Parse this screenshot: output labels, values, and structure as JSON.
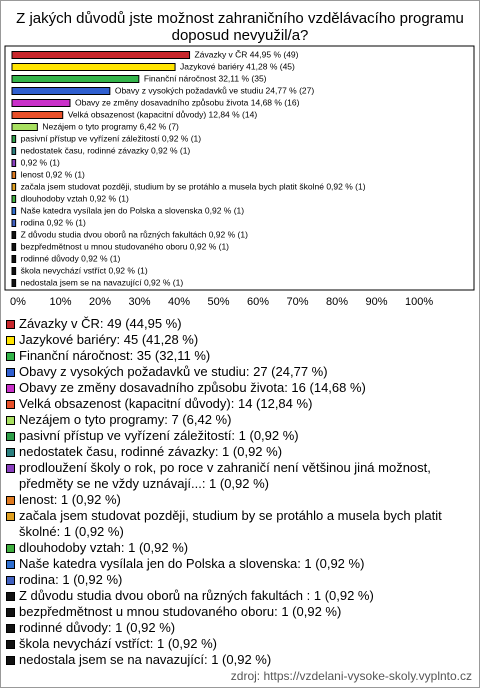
{
  "chart_data": {
    "type": "hbar",
    "title": [
      "Z jakých důvodů jste možnost zahraničního vzdělávacího programu",
      "doposud nevyužil/a?"
    ],
    "values": [
      44.95,
      41.28,
      32.11,
      24.77,
      14.68,
      12.84,
      6.42,
      0.92,
      0.92,
      0.92,
      0.92,
      0.92,
      0.92,
      0.92,
      0.92,
      0.92,
      0.92,
      0.92,
      0.92,
      0.92
    ],
    "value_labels": [
      "Závazky v ČR 44,95 % (49)",
      "Jazykové bariéry 41,28 % (45)",
      "Finanční náročnost 32,11 % (35)",
      "Obavy z vysokých požadavků ve studiu 24,77 % (27)",
      "Obavy ze změny dosavadního způsobu života 14,68 % (16)",
      "Velká obsazenost (kapacitní důvody) 12,84 % (14)",
      "Nezájem o tyto programy 6,42 % (7)",
      "pasivní přístup ve vyřízení záležitostí 0,92 % (1)",
      "nedostatek času, rodinné závazky 0,92 % (1)",
      "0,92 % (1)",
      "lenost 0,92 % (1)",
      "začala jsem studovat později, studium by se protáhlo a musela bych platit školné 0,92 % (1)",
      "dlouhodoby vztah 0,92 % (1)",
      "Naše katedra vysílala jen do Polska a slovenska 0,92 % (1)",
      "rodina 0,92 % (1)",
      "Z důvodu studia dvou oborů na různých fakultách  0,92 % (1)",
      "bezpředmětnost u mnou studovaného oboru 0,92 % (1)",
      "rodinné důvody 0,92 % (1)",
      "škola nevychází vstříct 0,92 % (1)",
      "nedostala jsem se na navazující 0,92 % (1)"
    ],
    "colors": [
      "#c8282d",
      "#ffe400",
      "#33b44a",
      "#2f5fd0",
      "#c930c9",
      "#e8502a",
      "#a8e060",
      "#2e9e48",
      "#2a7f7f",
      "#8a3fbf",
      "#e07a20",
      "#e0a020",
      "#3fae3f",
      "#2f6fd0",
      "#4060c0",
      "#111111",
      "#111111",
      "#111111",
      "#111111",
      "#111111"
    ],
    "legend": [
      "Závazky v ČR: 49 (44,95 %)",
      "Jazykové bariéry: 45 (41,28 %)",
      "Finanční náročnost: 35 (32,11 %)",
      "Obavy z vysokých požadavků ve studiu: 27 (24,77 %)",
      "Obavy ze změny dosavadního způsobu života: 16 (14,68 %)",
      "Velká obsazenost (kapacitní důvody): 14 (12,84 %)",
      "Nezájem o tyto programy: 7 (6,42 %)",
      "pasivní přístup ve vyřízení záležitostí: 1 (0,92 %)",
      "nedostatek času, rodinné závazky: 1 (0,92 %)",
      "prodloužení školy o rok, po roce v zahraničí není většinou jiná možnost, předměty se ne vždy uznávají...: 1 (0,92 %)",
      "lenost: 1 (0,92 %)",
      "začala jsem studovat později, studium by se protáhlo a musela bych platit školné: 1 (0,92 %)",
      "dlouhodoby vztah: 1 (0,92 %)",
      "Naše katedra vysílala jen do Polska a slovenska: 1 (0,92 %)",
      "rodina: 1 (0,92 %)",
      "Z důvodu studia dvou oborů na různých fakultách : 1 (0,92 %)",
      "bezpředmětnost u mnou studovaného oboru: 1 (0,92 %)",
      "rodinné důvody: 1 (0,92 %)",
      "škola nevychází vstříct: 1 (0,92 %)",
      "nedostala jsem se na navazující: 1 (0,92 %)"
    ],
    "xlim": [
      0,
      100
    ],
    "xticks": [
      {
        "value": 0,
        "label": "0%"
      },
      {
        "value": 10,
        "label": "10%"
      },
      {
        "value": 20,
        "label": "20%"
      },
      {
        "value": 30,
        "label": "30%"
      },
      {
        "value": 40,
        "label": "40%"
      },
      {
        "value": 50,
        "label": "50%"
      },
      {
        "value": 60,
        "label": "60%"
      },
      {
        "value": 70,
        "label": "70%"
      },
      {
        "value": 80,
        "label": "80%"
      },
      {
        "value": 90,
        "label": "90%"
      },
      {
        "value": 100,
        "label": "100%"
      }
    ],
    "source": "zdroj: https://vzdelani-vysoke-skoly.vyplnto.cz"
  }
}
